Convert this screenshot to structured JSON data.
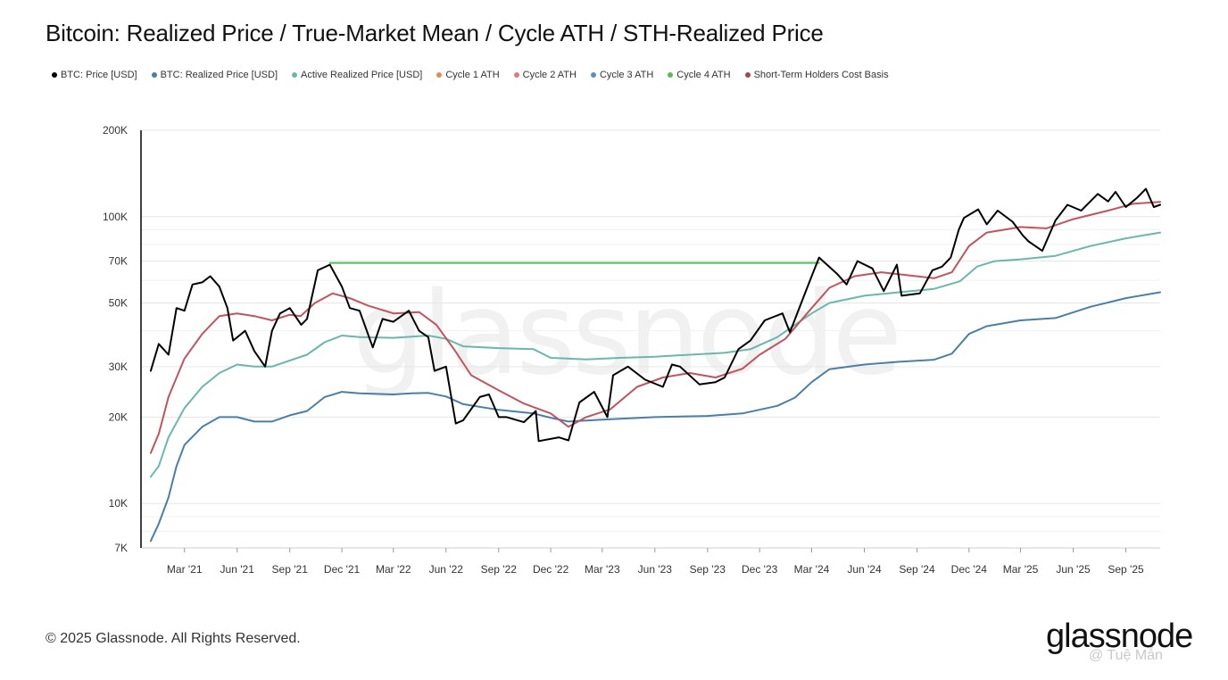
{
  "chart_data": {
    "type": "line",
    "title": "Bitcoin: Realized Price / True-Market Mean / Cycle ATH / STH-Realized Price",
    "y_scale": "log",
    "ylim": [
      7000,
      200000
    ],
    "xlim": [
      "2020-12-15",
      "2025-10-31"
    ],
    "grid": "horizontal",
    "legend_position": "top-left",
    "y_ticks": [
      {
        "value": 200000,
        "label": "200K"
      },
      {
        "value": 100000,
        "label": "100K"
      },
      {
        "value": 70000,
        "label": "70K"
      },
      {
        "value": 50000,
        "label": "50K"
      },
      {
        "value": 30000,
        "label": "30K"
      },
      {
        "value": 20000,
        "label": "20K"
      },
      {
        "value": 10000,
        "label": "10K"
      },
      {
        "value": 7000,
        "label": "7K"
      }
    ],
    "x_ticks": [
      {
        "date": "2021-03-01",
        "label": "Mar '21"
      },
      {
        "date": "2021-06-01",
        "label": "Jun '21"
      },
      {
        "date": "2021-09-01",
        "label": "Sep '21"
      },
      {
        "date": "2021-12-01",
        "label": "Dec '21"
      },
      {
        "date": "2022-03-01",
        "label": "Mar '22"
      },
      {
        "date": "2022-06-01",
        "label": "Jun '22"
      },
      {
        "date": "2022-09-01",
        "label": "Sep '22"
      },
      {
        "date": "2022-12-01",
        "label": "Dec '22"
      },
      {
        "date": "2023-03-01",
        "label": "Mar '23"
      },
      {
        "date": "2023-06-01",
        "label": "Jun '23"
      },
      {
        "date": "2023-09-01",
        "label": "Sep '23"
      },
      {
        "date": "2023-12-01",
        "label": "Dec '23"
      },
      {
        "date": "2024-03-01",
        "label": "Mar '24"
      },
      {
        "date": "2024-06-01",
        "label": "Jun '24"
      },
      {
        "date": "2024-09-01",
        "label": "Sep '24"
      },
      {
        "date": "2024-12-01",
        "label": "Dec '24"
      },
      {
        "date": "2025-03-01",
        "label": "Mar '25"
      },
      {
        "date": "2025-06-01",
        "label": "Jun '25"
      },
      {
        "date": "2025-09-01",
        "label": "Sep '25"
      }
    ],
    "series": [
      {
        "name": "BTC: Price [USD]",
        "color": "#000000",
        "width": 2,
        "points": [
          [
            "2021-01-01",
            29000
          ],
          [
            "2021-01-15",
            36000
          ],
          [
            "2021-02-01",
            33000
          ],
          [
            "2021-02-15",
            48000
          ],
          [
            "2021-03-01",
            47000
          ],
          [
            "2021-03-15",
            58000
          ],
          [
            "2021-04-01",
            59000
          ],
          [
            "2021-04-15",
            62000
          ],
          [
            "2021-05-01",
            57000
          ],
          [
            "2021-05-15",
            48000
          ],
          [
            "2021-05-25",
            37000
          ],
          [
            "2021-06-15",
            40000
          ],
          [
            "2021-07-01",
            34000
          ],
          [
            "2021-07-20",
            30000
          ],
          [
            "2021-08-01",
            40000
          ],
          [
            "2021-08-15",
            46000
          ],
          [
            "2021-09-01",
            48000
          ],
          [
            "2021-09-21",
            42000
          ],
          [
            "2021-10-01",
            44000
          ],
          [
            "2021-10-20",
            65000
          ],
          [
            "2021-11-10",
            68000
          ],
          [
            "2021-12-01",
            57000
          ],
          [
            "2021-12-15",
            48000
          ],
          [
            "2022-01-01",
            47000
          ],
          [
            "2022-01-24",
            35000
          ],
          [
            "2022-02-10",
            44000
          ],
          [
            "2022-03-01",
            43000
          ],
          [
            "2022-03-28",
            47000
          ],
          [
            "2022-04-15",
            40000
          ],
          [
            "2022-05-01",
            38000
          ],
          [
            "2022-05-12",
            29000
          ],
          [
            "2022-06-01",
            30000
          ],
          [
            "2022-06-18",
            19000
          ],
          [
            "2022-07-01",
            19500
          ],
          [
            "2022-07-30",
            23500
          ],
          [
            "2022-08-15",
            24000
          ],
          [
            "2022-09-01",
            20000
          ],
          [
            "2022-09-15",
            20000
          ],
          [
            "2022-10-15",
            19200
          ],
          [
            "2022-11-05",
            21000
          ],
          [
            "2022-11-10",
            16500
          ],
          [
            "2022-12-15",
            17000
          ],
          [
            "2023-01-01",
            16600
          ],
          [
            "2023-01-20",
            22500
          ],
          [
            "2023-02-15",
            24500
          ],
          [
            "2023-03-10",
            20000
          ],
          [
            "2023-03-20",
            28000
          ],
          [
            "2023-04-15",
            30000
          ],
          [
            "2023-05-15",
            27000
          ],
          [
            "2023-06-15",
            25500
          ],
          [
            "2023-07-01",
            30500
          ],
          [
            "2023-07-15",
            30000
          ],
          [
            "2023-08-18",
            26000
          ],
          [
            "2023-09-15",
            26500
          ],
          [
            "2023-10-01",
            27500
          ],
          [
            "2023-10-25",
            34500
          ],
          [
            "2023-11-15",
            37000
          ],
          [
            "2023-12-10",
            43500
          ],
          [
            "2024-01-10",
            46000
          ],
          [
            "2024-01-23",
            39500
          ],
          [
            "2024-02-15",
            52000
          ],
          [
            "2024-03-01",
            62000
          ],
          [
            "2024-03-14",
            72000
          ],
          [
            "2024-04-15",
            63000
          ],
          [
            "2024-05-01",
            58000
          ],
          [
            "2024-05-20",
            70000
          ],
          [
            "2024-06-15",
            66000
          ],
          [
            "2024-07-05",
            55000
          ],
          [
            "2024-07-28",
            68000
          ],
          [
            "2024-08-05",
            53000
          ],
          [
            "2024-09-06",
            54000
          ],
          [
            "2024-09-28",
            65000
          ],
          [
            "2024-10-15",
            67000
          ],
          [
            "2024-10-30",
            72000
          ],
          [
            "2024-11-13",
            90000
          ],
          [
            "2024-11-22",
            99000
          ],
          [
            "2024-12-17",
            106000
          ],
          [
            "2025-01-01",
            94000
          ],
          [
            "2025-01-20",
            105000
          ],
          [
            "2025-02-15",
            96000
          ],
          [
            "2025-03-05",
            86000
          ],
          [
            "2025-03-15",
            82000
          ],
          [
            "2025-04-08",
            76000
          ],
          [
            "2025-05-01",
            97000
          ],
          [
            "2025-05-22",
            110000
          ],
          [
            "2025-06-15",
            105000
          ],
          [
            "2025-07-14",
            120000
          ],
          [
            "2025-08-01",
            113000
          ],
          [
            "2025-08-14",
            122000
          ],
          [
            "2025-09-01",
            108000
          ],
          [
            "2025-09-20",
            116000
          ],
          [
            "2025-10-06",
            125000
          ],
          [
            "2025-10-20",
            108000
          ],
          [
            "2025-10-31",
            110000
          ]
        ]
      },
      {
        "name": "BTC: Realized Price [USD]",
        "color": "#4a7fa8",
        "width": 2,
        "points": [
          [
            "2021-01-01",
            7400
          ],
          [
            "2021-01-15",
            8500
          ],
          [
            "2021-02-01",
            10500
          ],
          [
            "2021-02-15",
            13500
          ],
          [
            "2021-03-01",
            16000
          ],
          [
            "2021-04-01",
            18500
          ],
          [
            "2021-05-01",
            20000
          ],
          [
            "2021-06-01",
            20000
          ],
          [
            "2021-07-01",
            19300
          ],
          [
            "2021-08-01",
            19300
          ],
          [
            "2021-09-01",
            20300
          ],
          [
            "2021-10-01",
            21000
          ],
          [
            "2021-11-01",
            23500
          ],
          [
            "2021-12-01",
            24500
          ],
          [
            "2022-01-01",
            24200
          ],
          [
            "2022-03-01",
            24000
          ],
          [
            "2022-04-01",
            24200
          ],
          [
            "2022-05-01",
            24300
          ],
          [
            "2022-06-01",
            23600
          ],
          [
            "2022-07-01",
            22200
          ],
          [
            "2022-09-01",
            21200
          ],
          [
            "2022-11-01",
            20600
          ],
          [
            "2022-12-01",
            19900
          ],
          [
            "2023-01-01",
            19300
          ],
          [
            "2023-03-01",
            19600
          ],
          [
            "2023-06-01",
            20000
          ],
          [
            "2023-09-01",
            20200
          ],
          [
            "2023-11-01",
            20600
          ],
          [
            "2024-01-01",
            21900
          ],
          [
            "2024-02-01",
            23400
          ],
          [
            "2024-03-01",
            26500
          ],
          [
            "2024-04-01",
            29400
          ],
          [
            "2024-06-01",
            30500
          ],
          [
            "2024-08-01",
            31200
          ],
          [
            "2024-10-01",
            31700
          ],
          [
            "2024-11-01",
            33300
          ],
          [
            "2024-12-01",
            39000
          ],
          [
            "2025-01-01",
            41500
          ],
          [
            "2025-03-01",
            43500
          ],
          [
            "2025-05-01",
            44300
          ],
          [
            "2025-07-01",
            48500
          ],
          [
            "2025-09-01",
            52000
          ],
          [
            "2025-10-31",
            54500
          ]
        ]
      },
      {
        "name": "Active Realized Price [USD]",
        "color": "#6ab7ad",
        "width": 2,
        "points": [
          [
            "2021-01-01",
            12400
          ],
          [
            "2021-01-15",
            13500
          ],
          [
            "2021-02-01",
            17000
          ],
          [
            "2021-03-01",
            21500
          ],
          [
            "2021-04-01",
            25500
          ],
          [
            "2021-05-01",
            28500
          ],
          [
            "2021-06-01",
            30500
          ],
          [
            "2021-07-01",
            30000
          ],
          [
            "2021-08-01",
            30000
          ],
          [
            "2021-09-01",
            31500
          ],
          [
            "2021-10-01",
            33000
          ],
          [
            "2021-11-01",
            36500
          ],
          [
            "2021-12-01",
            38500
          ],
          [
            "2022-01-01",
            38000
          ],
          [
            "2022-03-01",
            37800
          ],
          [
            "2022-05-01",
            38500
          ],
          [
            "2022-06-01",
            37500
          ],
          [
            "2022-07-01",
            35300
          ],
          [
            "2022-09-01",
            34800
          ],
          [
            "2022-11-01",
            34500
          ],
          [
            "2022-12-01",
            32200
          ],
          [
            "2023-02-01",
            31800
          ],
          [
            "2023-04-01",
            32200
          ],
          [
            "2023-06-01",
            32500
          ],
          [
            "2023-08-01",
            33000
          ],
          [
            "2023-10-01",
            33500
          ],
          [
            "2023-11-15",
            34500
          ],
          [
            "2024-01-01",
            38000
          ],
          [
            "2024-02-01",
            42000
          ],
          [
            "2024-03-01",
            46000
          ],
          [
            "2024-04-01",
            50000
          ],
          [
            "2024-06-01",
            53000
          ],
          [
            "2024-08-01",
            54500
          ],
          [
            "2024-10-01",
            56000
          ],
          [
            "2024-11-15",
            59500
          ],
          [
            "2024-12-15",
            67000
          ],
          [
            "2025-01-15",
            70000
          ],
          [
            "2025-03-01",
            71000
          ],
          [
            "2025-05-01",
            73000
          ],
          [
            "2025-07-01",
            79000
          ],
          [
            "2025-09-01",
            84000
          ],
          [
            "2025-10-31",
            88000
          ]
        ]
      },
      {
        "name": "Short-Term Holders Cost Basis",
        "color": "#c0545f",
        "width": 2,
        "points": [
          [
            "2021-01-01",
            15000
          ],
          [
            "2021-01-15",
            17500
          ],
          [
            "2021-02-01",
            23500
          ],
          [
            "2021-03-01",
            32000
          ],
          [
            "2021-04-01",
            39000
          ],
          [
            "2021-05-01",
            45000
          ],
          [
            "2021-06-01",
            46000
          ],
          [
            "2021-07-01",
            45000
          ],
          [
            "2021-08-01",
            43500
          ],
          [
            "2021-09-01",
            45500
          ],
          [
            "2021-09-20",
            45000
          ],
          [
            "2021-10-15",
            50000
          ],
          [
            "2021-11-15",
            54000
          ],
          [
            "2021-12-15",
            52000
          ],
          [
            "2022-01-15",
            49000
          ],
          [
            "2022-03-01",
            46000
          ],
          [
            "2022-04-15",
            46500
          ],
          [
            "2022-05-15",
            42000
          ],
          [
            "2022-06-15",
            34500
          ],
          [
            "2022-07-15",
            28000
          ],
          [
            "2022-09-01",
            24800
          ],
          [
            "2022-10-15",
            22300
          ],
          [
            "2022-12-01",
            20600
          ],
          [
            "2023-01-01",
            18500
          ],
          [
            "2023-02-01",
            20000
          ],
          [
            "2023-03-15",
            21300
          ],
          [
            "2023-05-01",
            25500
          ],
          [
            "2023-06-15",
            27500
          ],
          [
            "2023-08-01",
            28500
          ],
          [
            "2023-09-15",
            27500
          ],
          [
            "2023-11-01",
            29500
          ],
          [
            "2023-12-01",
            33000
          ],
          [
            "2024-01-15",
            37500
          ],
          [
            "2024-03-01",
            48000
          ],
          [
            "2024-04-01",
            56500
          ],
          [
            "2024-05-15",
            62000
          ],
          [
            "2024-07-01",
            64000
          ],
          [
            "2024-08-15",
            62500
          ],
          [
            "2024-10-01",
            61000
          ],
          [
            "2024-11-01",
            64000
          ],
          [
            "2024-12-01",
            79000
          ],
          [
            "2025-01-01",
            88000
          ],
          [
            "2025-03-01",
            92000
          ],
          [
            "2025-04-15",
            91000
          ],
          [
            "2025-06-01",
            98000
          ],
          [
            "2025-08-01",
            105000
          ],
          [
            "2025-09-15",
            111000
          ],
          [
            "2025-10-31",
            112500
          ]
        ]
      },
      {
        "name": "Cycle 4 ATH",
        "color": "#5cb85c",
        "width": 2,
        "points": [
          [
            "2021-11-10",
            69000
          ],
          [
            "2024-03-14",
            69000
          ]
        ]
      }
    ],
    "legend": [
      {
        "label": "BTC: Price [USD]",
        "color": "#000000"
      },
      {
        "label": "BTC: Realized Price [USD]",
        "color": "#4a7fa8"
      },
      {
        "label": "Active Realized Price [USD]",
        "color": "#6ab7ad"
      },
      {
        "label": "Cycle 1 ATH",
        "color": "#e8875a"
      },
      {
        "label": "Cycle 2 ATH",
        "color": "#e07c78"
      },
      {
        "label": "Cycle 3 ATH",
        "color": "#5f8fbf"
      },
      {
        "label": "Cycle 4 ATH",
        "color": "#5cb85c"
      },
      {
        "label": "Short-Term Holders Cost Basis",
        "color": "#a94450"
      }
    ]
  },
  "footer": {
    "copyright": "© 2025 Glassnode. All Rights Reserved."
  },
  "brand": {
    "logo_text": "glassnode",
    "watermark_text": "glassnode",
    "credit": "@ Tuệ Mẫn"
  }
}
